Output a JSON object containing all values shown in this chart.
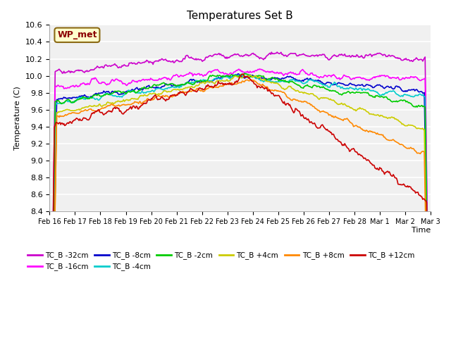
{
  "title": "Temperatures Set B",
  "xlabel": "Time",
  "ylabel": "Temperature (C)",
  "ylim": [
    8.4,
    10.6
  ],
  "annotation_label": "WP_met",
  "annotation_color": "#8B0000",
  "annotation_bg": "#FFFFCC",
  "series": [
    {
      "label": "TC_B -32cm",
      "color": "#CC00CC"
    },
    {
      "label": "TC_B -16cm",
      "color": "#FF00FF"
    },
    {
      "label": "TC_B -8cm",
      "color": "#0000CC"
    },
    {
      "label": "TC_B -4cm",
      "color": "#00CCCC"
    },
    {
      "label": "TC_B -2cm",
      "color": "#00CC00"
    },
    {
      "label": "TC_B +4cm",
      "color": "#CCCC00"
    },
    {
      "label": "TC_B +8cm",
      "color": "#FF8800"
    },
    {
      "label": "TC_B +12cm",
      "color": "#CC0000"
    }
  ],
  "xtick_labels": [
    "Feb 16",
    "Feb 17",
    "Feb 18",
    "Feb 19",
    "Feb 20",
    "Feb 21",
    "Feb 22",
    "Feb 23",
    "Feb 24",
    "Feb 25",
    "Feb 26",
    "Feb 27",
    "Feb 28",
    "Mar 1",
    "Mar 2",
    "Mar 3"
  ],
  "n_points": 480,
  "plot_bg": "#F0F0F0"
}
